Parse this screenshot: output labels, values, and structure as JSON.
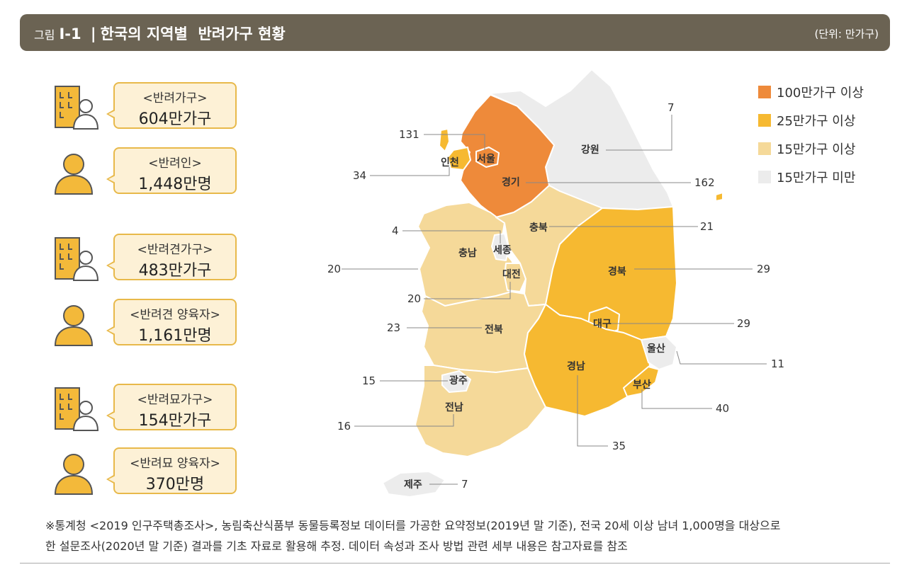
{
  "title": {
    "prefix": "그림",
    "number": "Ⅰ-1",
    "separator": "|",
    "text": "한국의 지역별  반려가구 현황",
    "unit": "(단위: 만가구)"
  },
  "stats": [
    {
      "label": "<반려가구>",
      "value": "604만가구",
      "icon": "building-person-icon"
    },
    {
      "label": "<반려인>",
      "value": "1,448만명",
      "icon": "person-icon"
    },
    {
      "label": "<반려견가구>",
      "value": "483만가구",
      "icon": "building-person-icon"
    },
    {
      "label": "<반려견 양육자>",
      "value": "1,161만명",
      "icon": "person-icon"
    },
    {
      "label": "<반려묘가구>",
      "value": "154만가구",
      "icon": "building-person-icon"
    },
    {
      "label": "<반려묘 양육자>",
      "value": "370만명",
      "icon": "person-icon"
    }
  ],
  "legend": [
    {
      "label": "100만가구 이상",
      "color": "#ee8a3a"
    },
    {
      "label": "25만가구 이상",
      "color": "#f6b931"
    },
    {
      "label": "15만가구 이상",
      "color": "#f5d999"
    },
    {
      "label": "15만가구 미만",
      "color": "#ececec"
    }
  ],
  "regions": {
    "seoul": {
      "name": "서울",
      "value": "131"
    },
    "incheon": {
      "name": "인천",
      "value": "34"
    },
    "gyeonggi": {
      "name": "경기",
      "value": "162"
    },
    "gangwon": {
      "name": "강원",
      "value": "7"
    },
    "chungbuk": {
      "name": "충북",
      "value": "21"
    },
    "sejong": {
      "name": "세종",
      "value": "4"
    },
    "chungnam": {
      "name": "충남",
      "value": "20"
    },
    "daejeon": {
      "name": "대전",
      "value": "20"
    },
    "gyeongbuk": {
      "name": "경북",
      "value": "29"
    },
    "daegu": {
      "name": "대구",
      "value": "29"
    },
    "jeonbuk": {
      "name": "전북",
      "value": "23"
    },
    "ulsan": {
      "name": "울산",
      "value": "11"
    },
    "gyeongnam": {
      "name": "경남",
      "value": "35"
    },
    "gwangju": {
      "name": "광주",
      "value": "15"
    },
    "busan": {
      "name": "부산",
      "value": "40"
    },
    "jeonnam": {
      "name": "전남",
      "value": "16"
    },
    "jeju": {
      "name": "제주",
      "value": "7"
    }
  },
  "note": {
    "line1": "※통계청 <2019 인구주택총조사>, 농림축산식품부 동물등록정보 데이터를 가공한 요약정보(2019년 말 기준), 전국 20세 이상 남녀 1,000명을 대상으로",
    "line2": "한 설문조사(2020년 말 기준) 결과를 기초 자료로 활용해 추정. 데이터 속성과 조사 방법 관련 세부 내용은 참고자료를 참조"
  }
}
